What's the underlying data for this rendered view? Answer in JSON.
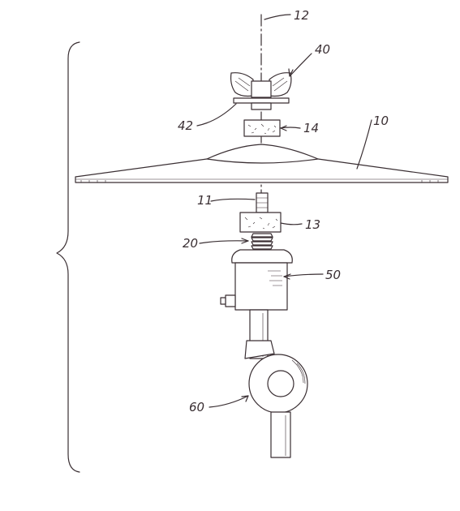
{
  "figure": {
    "labels": {
      "axis": "12",
      "wing_nut": "40",
      "washer": "42",
      "upper_felt": "14",
      "cymbal": "10",
      "threaded_post": "11",
      "lower_felt": "13",
      "spring_base": "20",
      "holder": "50",
      "clamp": "60"
    },
    "colors": {
      "ink": "#3a2f33",
      "background": "#ffffff"
    }
  }
}
